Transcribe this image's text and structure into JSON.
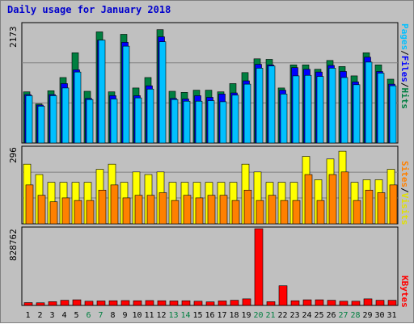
{
  "title": "Daily usage for January 2018",
  "colors": {
    "hits": "#007f40",
    "files": "#0000ff",
    "pages": "#00c0ff",
    "visits": "#ffff00",
    "sites": "#ff8000",
    "kbytes": "#ff0000",
    "weekend_label": "#007f40",
    "weekday_label": "#000000"
  },
  "chart_data": [
    {
      "type": "bar",
      "name": "hits-files-pages",
      "ymax_label": "2173",
      "legend": [
        "Pages",
        "/",
        "Files",
        "/",
        "Hits"
      ],
      "ylim": [
        0,
        2173
      ],
      "categories": [
        "1",
        "2",
        "3",
        "4",
        "5",
        "6",
        "7",
        "8",
        "9",
        "10",
        "11",
        "12",
        "13",
        "14",
        "15",
        "16",
        "17",
        "18",
        "19",
        "20",
        "21",
        "22",
        "23",
        "24",
        "25",
        "26",
        "27",
        "28",
        "29",
        "30",
        "31"
      ],
      "weekend": [
        6,
        7,
        13,
        14,
        20,
        21,
        27,
        28
      ],
      "series": [
        {
          "name": "Hits",
          "values": [
            930,
            710,
            950,
            1190,
            1640,
            940,
            2020,
            930,
            1975,
            1000,
            1190,
            2060,
            940,
            920,
            960,
            960,
            930,
            1080,
            1280,
            1530,
            1520,
            1000,
            1420,
            1420,
            1340,
            1500,
            1390,
            1220,
            1640,
            1420,
            1160
          ]
        },
        {
          "name": "Files",
          "values": [
            880,
            690,
            880,
            1080,
            1330,
            810,
            1870,
            860,
            1830,
            860,
            1040,
            1930,
            810,
            800,
            860,
            830,
            890,
            910,
            1130,
            1430,
            1420,
            960,
            1370,
            1340,
            1290,
            1410,
            1300,
            1110,
            1560,
            1300,
            1070
          ]
        },
        {
          "name": "Pages",
          "values": [
            860,
            670,
            860,
            1000,
            1290,
            790,
            1870,
            800,
            1760,
            820,
            980,
            1840,
            790,
            760,
            760,
            770,
            750,
            870,
            1070,
            1360,
            1400,
            890,
            1220,
            1230,
            1210,
            1360,
            1190,
            1060,
            1470,
            1270,
            1040
          ]
        }
      ]
    },
    {
      "type": "bar",
      "name": "visits-sites",
      "ymax_label": "296",
      "legend": [
        "Sites",
        "/",
        "Visits"
      ],
      "ylim": [
        0,
        296
      ],
      "series": [
        {
          "name": "Visits",
          "values": [
            230,
            190,
            160,
            160,
            160,
            160,
            210,
            230,
            160,
            200,
            190,
            200,
            160,
            160,
            160,
            160,
            160,
            160,
            230,
            200,
            160,
            160,
            160,
            260,
            170,
            250,
            280,
            160,
            170,
            170,
            210
          ]
        },
        {
          "name": "Sites",
          "values": [
            150,
            110,
            85,
            100,
            90,
            90,
            130,
            150,
            100,
            110,
            110,
            120,
            90,
            110,
            100,
            110,
            110,
            90,
            130,
            90,
            110,
            90,
            90,
            190,
            90,
            190,
            200,
            90,
            130,
            120,
            150
          ]
        }
      ]
    },
    {
      "type": "bar",
      "name": "kbytes",
      "ymax_label": "828762",
      "legend": [
        "KBytes"
      ],
      "ylim": [
        0,
        828762
      ],
      "series": [
        {
          "name": "KBytes",
          "values": [
            30000,
            28000,
            40000,
            55000,
            60000,
            45000,
            48000,
            50000,
            52000,
            50000,
            52000,
            50000,
            48000,
            50000,
            45000,
            38000,
            48000,
            55000,
            70000,
            820000,
            40000,
            210000,
            50000,
            60000,
            60000,
            55000,
            45000,
            45000,
            70000,
            55000,
            55000
          ]
        }
      ]
    }
  ]
}
